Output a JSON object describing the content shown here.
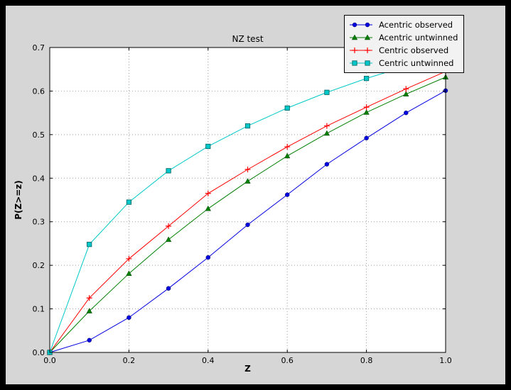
{
  "window": {
    "outer_background": "#000000",
    "figure_background": "#d6d6d6",
    "plot_background": "#ffffff",
    "grid_color": "#9f9f9f"
  },
  "chart_data": {
    "type": "line",
    "title": "NZ test",
    "xlabel": "Z",
    "ylabel": "P(Z>=z)",
    "xlim": [
      0.0,
      1.0
    ],
    "ylim": [
      0.0,
      0.7
    ],
    "x_ticks": [
      "0.0",
      "0.2",
      "0.4",
      "0.6",
      "0.8",
      "1.0"
    ],
    "y_ticks": [
      "0.0",
      "0.1",
      "0.2",
      "0.3",
      "0.4",
      "0.5",
      "0.6",
      "0.7"
    ],
    "grid": true,
    "legend_position": "upper right",
    "x": [
      0.0,
      0.1,
      0.2,
      0.3,
      0.4,
      0.5,
      0.6,
      0.7,
      0.8,
      0.9,
      1.0
    ],
    "series": [
      {
        "name": "Acentric observed",
        "color": "#0000e0",
        "marker": "circle",
        "values": [
          0.0,
          0.028,
          0.08,
          0.147,
          0.218,
          0.293,
          0.362,
          0.432,
          0.492,
          0.55,
          0.601
        ]
      },
      {
        "name": "Acentric untwinned",
        "color": "#007f00",
        "marker": "triangle",
        "values": [
          0.0,
          0.095,
          0.181,
          0.259,
          0.33,
          0.393,
          0.451,
          0.503,
          0.551,
          0.593,
          0.632
        ]
      },
      {
        "name": "Centric observed",
        "color": "#ff0000",
        "marker": "plus",
        "values": [
          0.0,
          0.125,
          0.215,
          0.29,
          0.365,
          0.42,
          0.472,
          0.52,
          0.563,
          0.605,
          0.645
        ]
      },
      {
        "name": "Centric untwinned",
        "color": "#00c8c8",
        "marker": "square",
        "values": [
          0.0,
          0.248,
          0.345,
          0.417,
          0.473,
          0.52,
          0.561,
          0.597,
          0.629,
          0.657,
          0.683
        ]
      }
    ]
  }
}
